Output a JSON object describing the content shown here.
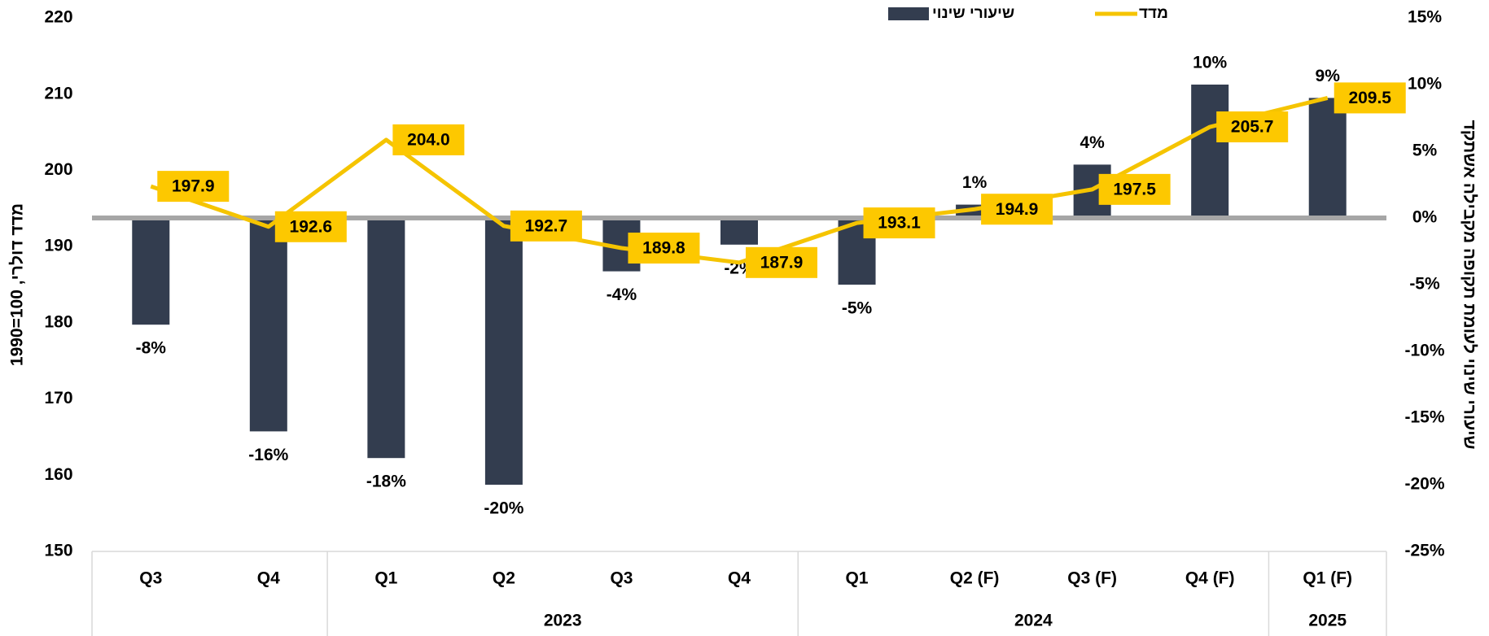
{
  "chart_data": {
    "type": "bar-line",
    "y_label": "מדד דולרי, 100=1990",
    "y2_label": "שיעורי שינוי לעומת תקופה מקבילה אשתקד",
    "categories": [
      "Q3",
      "Q4",
      "Q1",
      "Q2",
      "Q3",
      "Q4",
      "Q1",
      "Q2 (F)",
      "Q3 (F)",
      "Q4 (F)",
      "Q1 (F)"
    ],
    "groups": [
      {
        "label": null,
        "count": 2
      },
      {
        "label": "2023",
        "count": 4
      },
      {
        "label": "2024",
        "count": 4
      },
      {
        "label": "2025",
        "count": 1
      }
    ],
    "series": [
      {
        "name": "שיעורי שינוי",
        "type": "bar",
        "axis": "y2",
        "color": "#333d4f",
        "values": [
          -8,
          -16,
          -18,
          -20,
          -4,
          -2,
          -5,
          1,
          4,
          10,
          9
        ],
        "value_labels": [
          "-8%",
          "-16%",
          "-18%",
          "-20%",
          "-4%",
          "-2%",
          "-5%",
          "1%",
          "4%",
          "10%",
          "9%"
        ]
      },
      {
        "name": "מדד",
        "type": "line",
        "axis": "y",
        "color": "#f5c400",
        "label_box": "#fdc800",
        "values": [
          197.9,
          192.6,
          204.0,
          192.7,
          189.8,
          187.9,
          193.1,
          194.9,
          197.5,
          205.7,
          209.5
        ],
        "value_labels": [
          "197.9",
          "192.6",
          "204.0",
          "192.7",
          "189.8",
          "187.9",
          "193.1",
          "194.9",
          "197.5",
          "205.7",
          "209.5"
        ]
      }
    ],
    "ylim": [
      150,
      220
    ],
    "yticks": [
      150,
      160,
      170,
      180,
      190,
      200,
      210,
      220
    ],
    "y2lim": [
      -25,
      15
    ],
    "y2ticks": [
      {
        "value": -25,
        "label": "-25%"
      },
      {
        "value": -20,
        "label": "-20%"
      },
      {
        "value": -15,
        "label": "-15%"
      },
      {
        "value": -10,
        "label": "-10%"
      },
      {
        "value": -5,
        "label": "-5%"
      },
      {
        "value": 0,
        "label": "0%"
      },
      {
        "value": 5,
        "label": "5%"
      },
      {
        "value": 10,
        "label": "10%"
      },
      {
        "value": 15,
        "label": "15%"
      }
    ],
    "zero_line_color": "#a6a6a6"
  }
}
